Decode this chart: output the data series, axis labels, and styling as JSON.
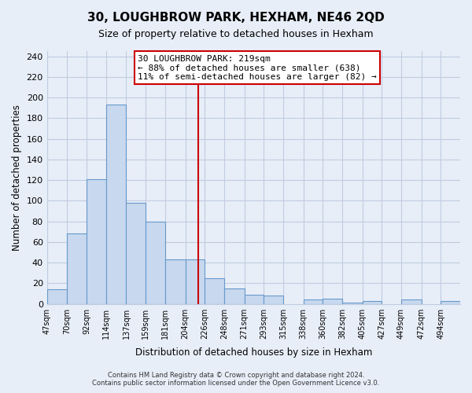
{
  "title": "30, LOUGHBROW PARK, HEXHAM, NE46 2QD",
  "subtitle": "Size of property relative to detached houses in Hexham",
  "xlabel": "Distribution of detached houses by size in Hexham",
  "ylabel": "Number of detached properties",
  "bin_labels": [
    "47sqm",
    "70sqm",
    "92sqm",
    "114sqm",
    "137sqm",
    "159sqm",
    "181sqm",
    "204sqm",
    "226sqm",
    "248sqm",
    "271sqm",
    "293sqm",
    "315sqm",
    "338sqm",
    "360sqm",
    "382sqm",
    "405sqm",
    "427sqm",
    "449sqm",
    "472sqm",
    "494sqm"
  ],
  "bin_edges": [
    47,
    70,
    92,
    114,
    137,
    159,
    181,
    204,
    226,
    248,
    271,
    293,
    315,
    338,
    360,
    382,
    405,
    427,
    449,
    472,
    494
  ],
  "bar_heights": [
    14,
    68,
    121,
    193,
    98,
    80,
    43,
    43,
    25,
    15,
    9,
    8,
    0,
    4,
    5,
    1,
    3,
    0,
    4,
    0,
    3
  ],
  "bar_color": "#c8d8ee",
  "bar_edge_color": "#6699cc",
  "vline_x": 219,
  "vline_color": "#cc0000",
  "annotation_line1": "30 LOUGHBROW PARK: 219sqm",
  "annotation_line2": "← 88% of detached houses are smaller (638)",
  "annotation_line3": "11% of semi-detached houses are larger (82) →",
  "annotation_box_edge_color": "#cc0000",
  "annotation_box_fill": "#ffffff",
  "ylim": [
    0,
    245
  ],
  "yticks": [
    0,
    20,
    40,
    60,
    80,
    100,
    120,
    140,
    160,
    180,
    200,
    220,
    240
  ],
  "footer_line1": "Contains HM Land Registry data © Crown copyright and database right 2024.",
  "footer_line2": "Contains public sector information licensed under the Open Government Licence v3.0.",
  "bg_color": "#e8eef8",
  "plot_bg_color": "#e8eef8",
  "grid_color": "#c0cce0"
}
